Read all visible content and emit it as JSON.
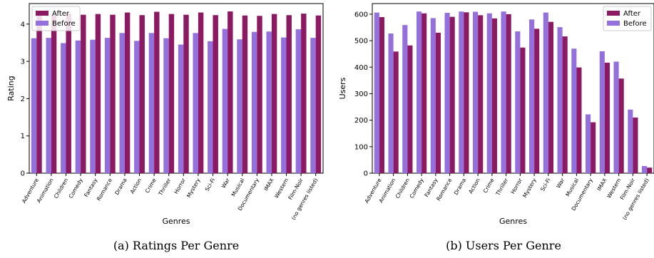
{
  "chart_data": [
    {
      "type": "bar",
      "caption": "(a) Ratings Per Genre",
      "xlabel": "Genres",
      "ylabel": "Rating",
      "ylim": [
        0,
        4.55
      ],
      "yticks": [
        0,
        1,
        2,
        3,
        4
      ],
      "legend_position": "top-left",
      "legend_order": [
        "After",
        "Before"
      ],
      "categories": [
        "Adventure",
        "Animation",
        "Children",
        "Comedy",
        "Fantasy",
        "Romance",
        "Drama",
        "Action",
        "Crime",
        "Thriller",
        "Horror",
        "Mystery",
        "Sci-Fi",
        "War",
        "Musical",
        "Documentary",
        "IMAX",
        "Western",
        "Film-Noir",
        "(no genres listed)"
      ],
      "series": [
        {
          "name": "Before",
          "color": "#9370db",
          "values": [
            3.62,
            3.63,
            3.49,
            3.56,
            3.58,
            3.63,
            3.76,
            3.55,
            3.76,
            3.62,
            3.45,
            3.76,
            3.54,
            3.87,
            3.59,
            3.79,
            3.8,
            3.64,
            3.86,
            3.63
          ]
        },
        {
          "name": "After",
          "color": "#8b1a62",
          "values": [
            4.27,
            4.24,
            4.28,
            4.25,
            4.27,
            4.25,
            4.31,
            4.24,
            4.33,
            4.27,
            4.25,
            4.31,
            4.24,
            4.34,
            4.23,
            4.22,
            4.27,
            4.24,
            4.28,
            4.23
          ]
        }
      ]
    },
    {
      "type": "bar",
      "caption": "(b) Users Per Genre",
      "xlabel": "Genres",
      "ylabel": "Users",
      "ylim": [
        0,
        640
      ],
      "yticks": [
        0,
        100,
        200,
        300,
        400,
        500,
        600
      ],
      "legend_position": "top-right",
      "legend_order": [
        "After",
        "Before"
      ],
      "categories": [
        "Adventure",
        "Animation",
        "Children",
        "Comedy",
        "Fantasy",
        "Romance",
        "Drama",
        "Action",
        "Crime",
        "Thriller",
        "Horror",
        "Mystery",
        "Sci-Fi",
        "War",
        "Musical",
        "Documentary",
        "IMAX",
        "Western",
        "Film-Noir",
        "(no genres listed)"
      ],
      "series": [
        {
          "name": "Before",
          "color": "#9370db",
          "values": [
            606,
            527,
            559,
            610,
            585,
            605,
            610,
            609,
            603,
            610,
            535,
            580,
            606,
            551,
            470,
            222,
            460,
            421,
            240,
            27
          ]
        },
        {
          "name": "After",
          "color": "#8b1a62",
          "values": [
            589,
            459,
            482,
            603,
            530,
            590,
            607,
            596,
            584,
            600,
            474,
            545,
            571,
            516,
            399,
            192,
            417,
            357,
            210,
            21
          ]
        }
      ]
    }
  ]
}
